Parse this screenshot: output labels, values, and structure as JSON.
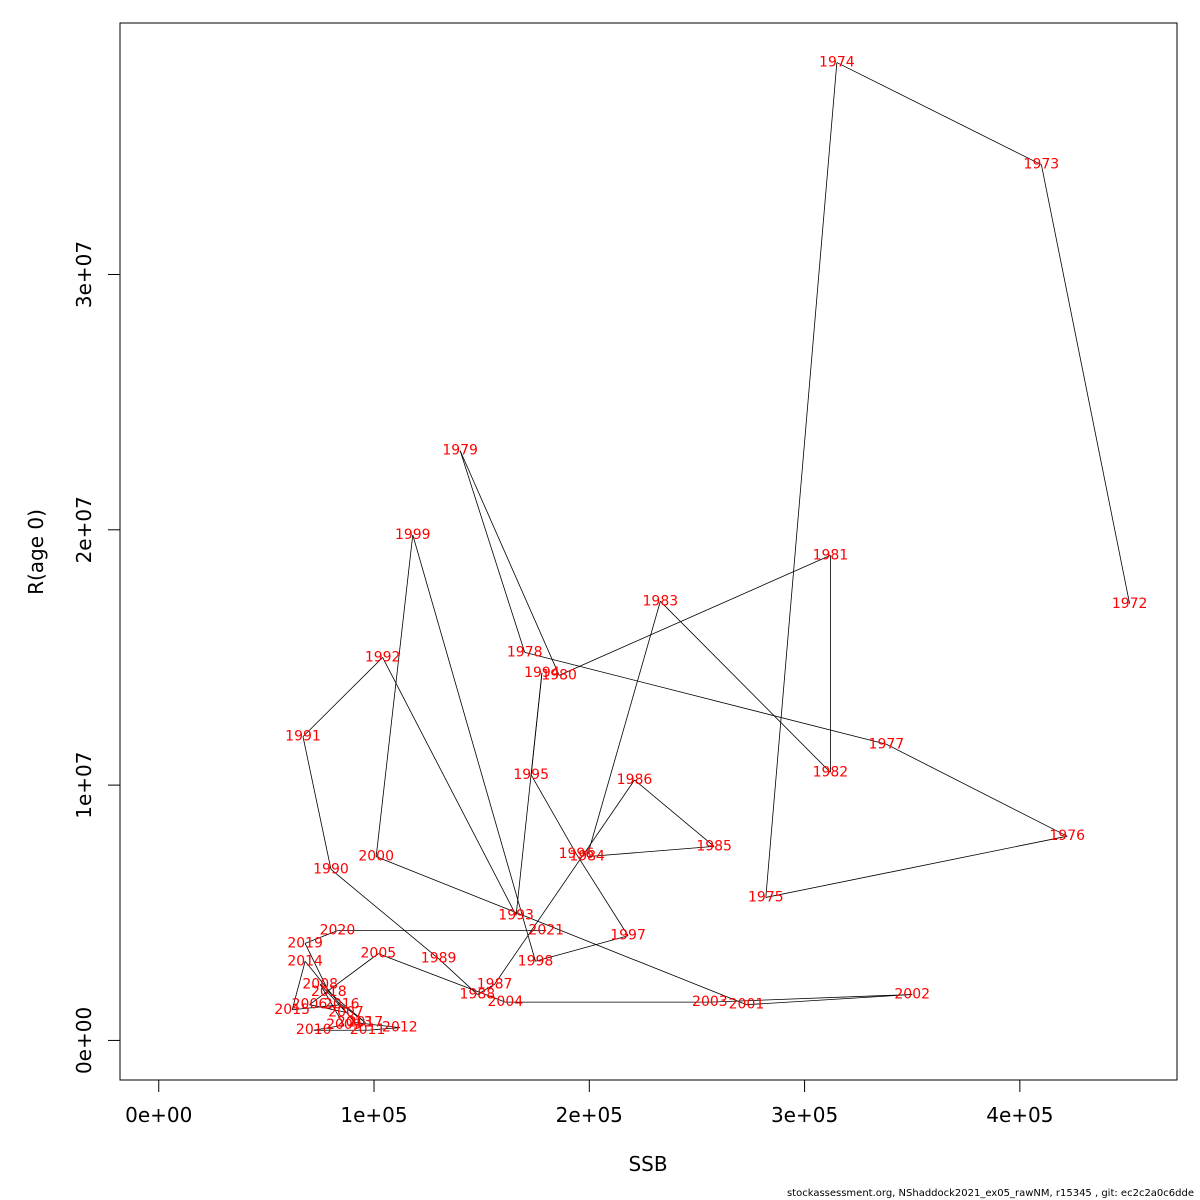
{
  "chart_data": {
    "type": "line",
    "xlabel": "SSB",
    "ylabel": "R(age 0)",
    "xlim": [
      -18000,
      473000
    ],
    "ylim": [
      -1550000,
      39850000
    ],
    "x_ticks": [
      0,
      100000,
      200000,
      300000,
      400000
    ],
    "x_tick_labels": [
      "0e+00",
      "1e+05",
      "2e+05",
      "3e+05",
      "4e+05"
    ],
    "y_ticks": [
      0,
      10000000,
      20000000,
      30000000
    ],
    "y_tick_labels": [
      "0e+00",
      "1e+07",
      "2e+07",
      "3e+07"
    ],
    "grid": false,
    "line_color": "#000000",
    "label_color": "#ff0000",
    "series": [
      {
        "points": [
          {
            "year": "1972",
            "x": 451000,
            "y": 17100000
          },
          {
            "year": "1973",
            "x": 410000,
            "y": 34300000
          },
          {
            "year": "1974",
            "x": 315000,
            "y": 38300000
          },
          {
            "year": "1975",
            "x": 282000,
            "y": 5600000
          },
          {
            "year": "1976",
            "x": 422000,
            "y": 8000000
          },
          {
            "year": "1977",
            "x": 338000,
            "y": 11600000
          },
          {
            "year": "1978",
            "x": 170000,
            "y": 15200000
          },
          {
            "year": "1979",
            "x": 140000,
            "y": 23100000
          },
          {
            "year": "1980",
            "x": 186000,
            "y": 14300000
          },
          {
            "year": "1981",
            "x": 312000,
            "y": 19000000
          },
          {
            "year": "1982",
            "x": 312000,
            "y": 10500000
          },
          {
            "year": "1983",
            "x": 233000,
            "y": 17200000
          },
          {
            "year": "1984",
            "x": 199000,
            "y": 7200000
          },
          {
            "year": "1985",
            "x": 258000,
            "y": 7600000
          },
          {
            "year": "1986",
            "x": 221000,
            "y": 10200000
          },
          {
            "year": "1987",
            "x": 156000,
            "y": 2200000
          },
          {
            "year": "1988",
            "x": 148000,
            "y": 1800000
          },
          {
            "year": "1989",
            "x": 130000,
            "y": 3200000
          },
          {
            "year": "1990",
            "x": 80000,
            "y": 6700000
          },
          {
            "year": "1991",
            "x": 67000,
            "y": 11900000
          },
          {
            "year": "1992",
            "x": 104000,
            "y": 15000000
          },
          {
            "year": "1993",
            "x": 166000,
            "y": 4900000
          },
          {
            "year": "1994",
            "x": 178000,
            "y": 14400000
          },
          {
            "year": "1995",
            "x": 173000,
            "y": 10400000
          },
          {
            "year": "1996",
            "x": 194000,
            "y": 7300000
          },
          {
            "year": "1997",
            "x": 218000,
            "y": 4100000
          },
          {
            "year": "1998",
            "x": 175000,
            "y": 3100000
          },
          {
            "year": "1999",
            "x": 118000,
            "y": 19800000
          },
          {
            "year": "2000",
            "x": 101000,
            "y": 7200000
          },
          {
            "year": "2001",
            "x": 273000,
            "y": 1400000
          },
          {
            "year": "2002",
            "x": 350000,
            "y": 1800000
          },
          {
            "year": "2003",
            "x": 256000,
            "y": 1500000
          },
          {
            "year": "2004",
            "x": 161000,
            "y": 1500000
          },
          {
            "year": "2005",
            "x": 102000,
            "y": 3400000
          },
          {
            "year": "2006",
            "x": 70000,
            "y": 1400000
          },
          {
            "year": "2007",
            "x": 87000,
            "y": 1100000
          },
          {
            "year": "2008",
            "x": 75000,
            "y": 2200000
          },
          {
            "year": "2009",
            "x": 86000,
            "y": 600000
          },
          {
            "year": "2010",
            "x": 72000,
            "y": 400000
          },
          {
            "year": "2011",
            "x": 97000,
            "y": 400000
          },
          {
            "year": "2012",
            "x": 112000,
            "y": 500000
          },
          {
            "year": "2013",
            "x": 91000,
            "y": 700000
          },
          {
            "year": "2014",
            "x": 68000,
            "y": 3100000
          },
          {
            "year": "2015",
            "x": 62000,
            "y": 1200000
          },
          {
            "year": "2016",
            "x": 85000,
            "y": 1400000
          },
          {
            "year": "2017",
            "x": 96000,
            "y": 700000
          },
          {
            "year": "2018",
            "x": 79000,
            "y": 1900000
          },
          {
            "year": "2019",
            "x": 68000,
            "y": 3800000
          },
          {
            "year": "2020",
            "x": 83000,
            "y": 4300000
          },
          {
            "year": "2021",
            "x": 180000,
            "y": 4300000
          }
        ]
      }
    ]
  },
  "footer": "stockassessment.org, NShaddock2021_ex05_rawNM, r15345 , git: ec2c2a0c6dde"
}
